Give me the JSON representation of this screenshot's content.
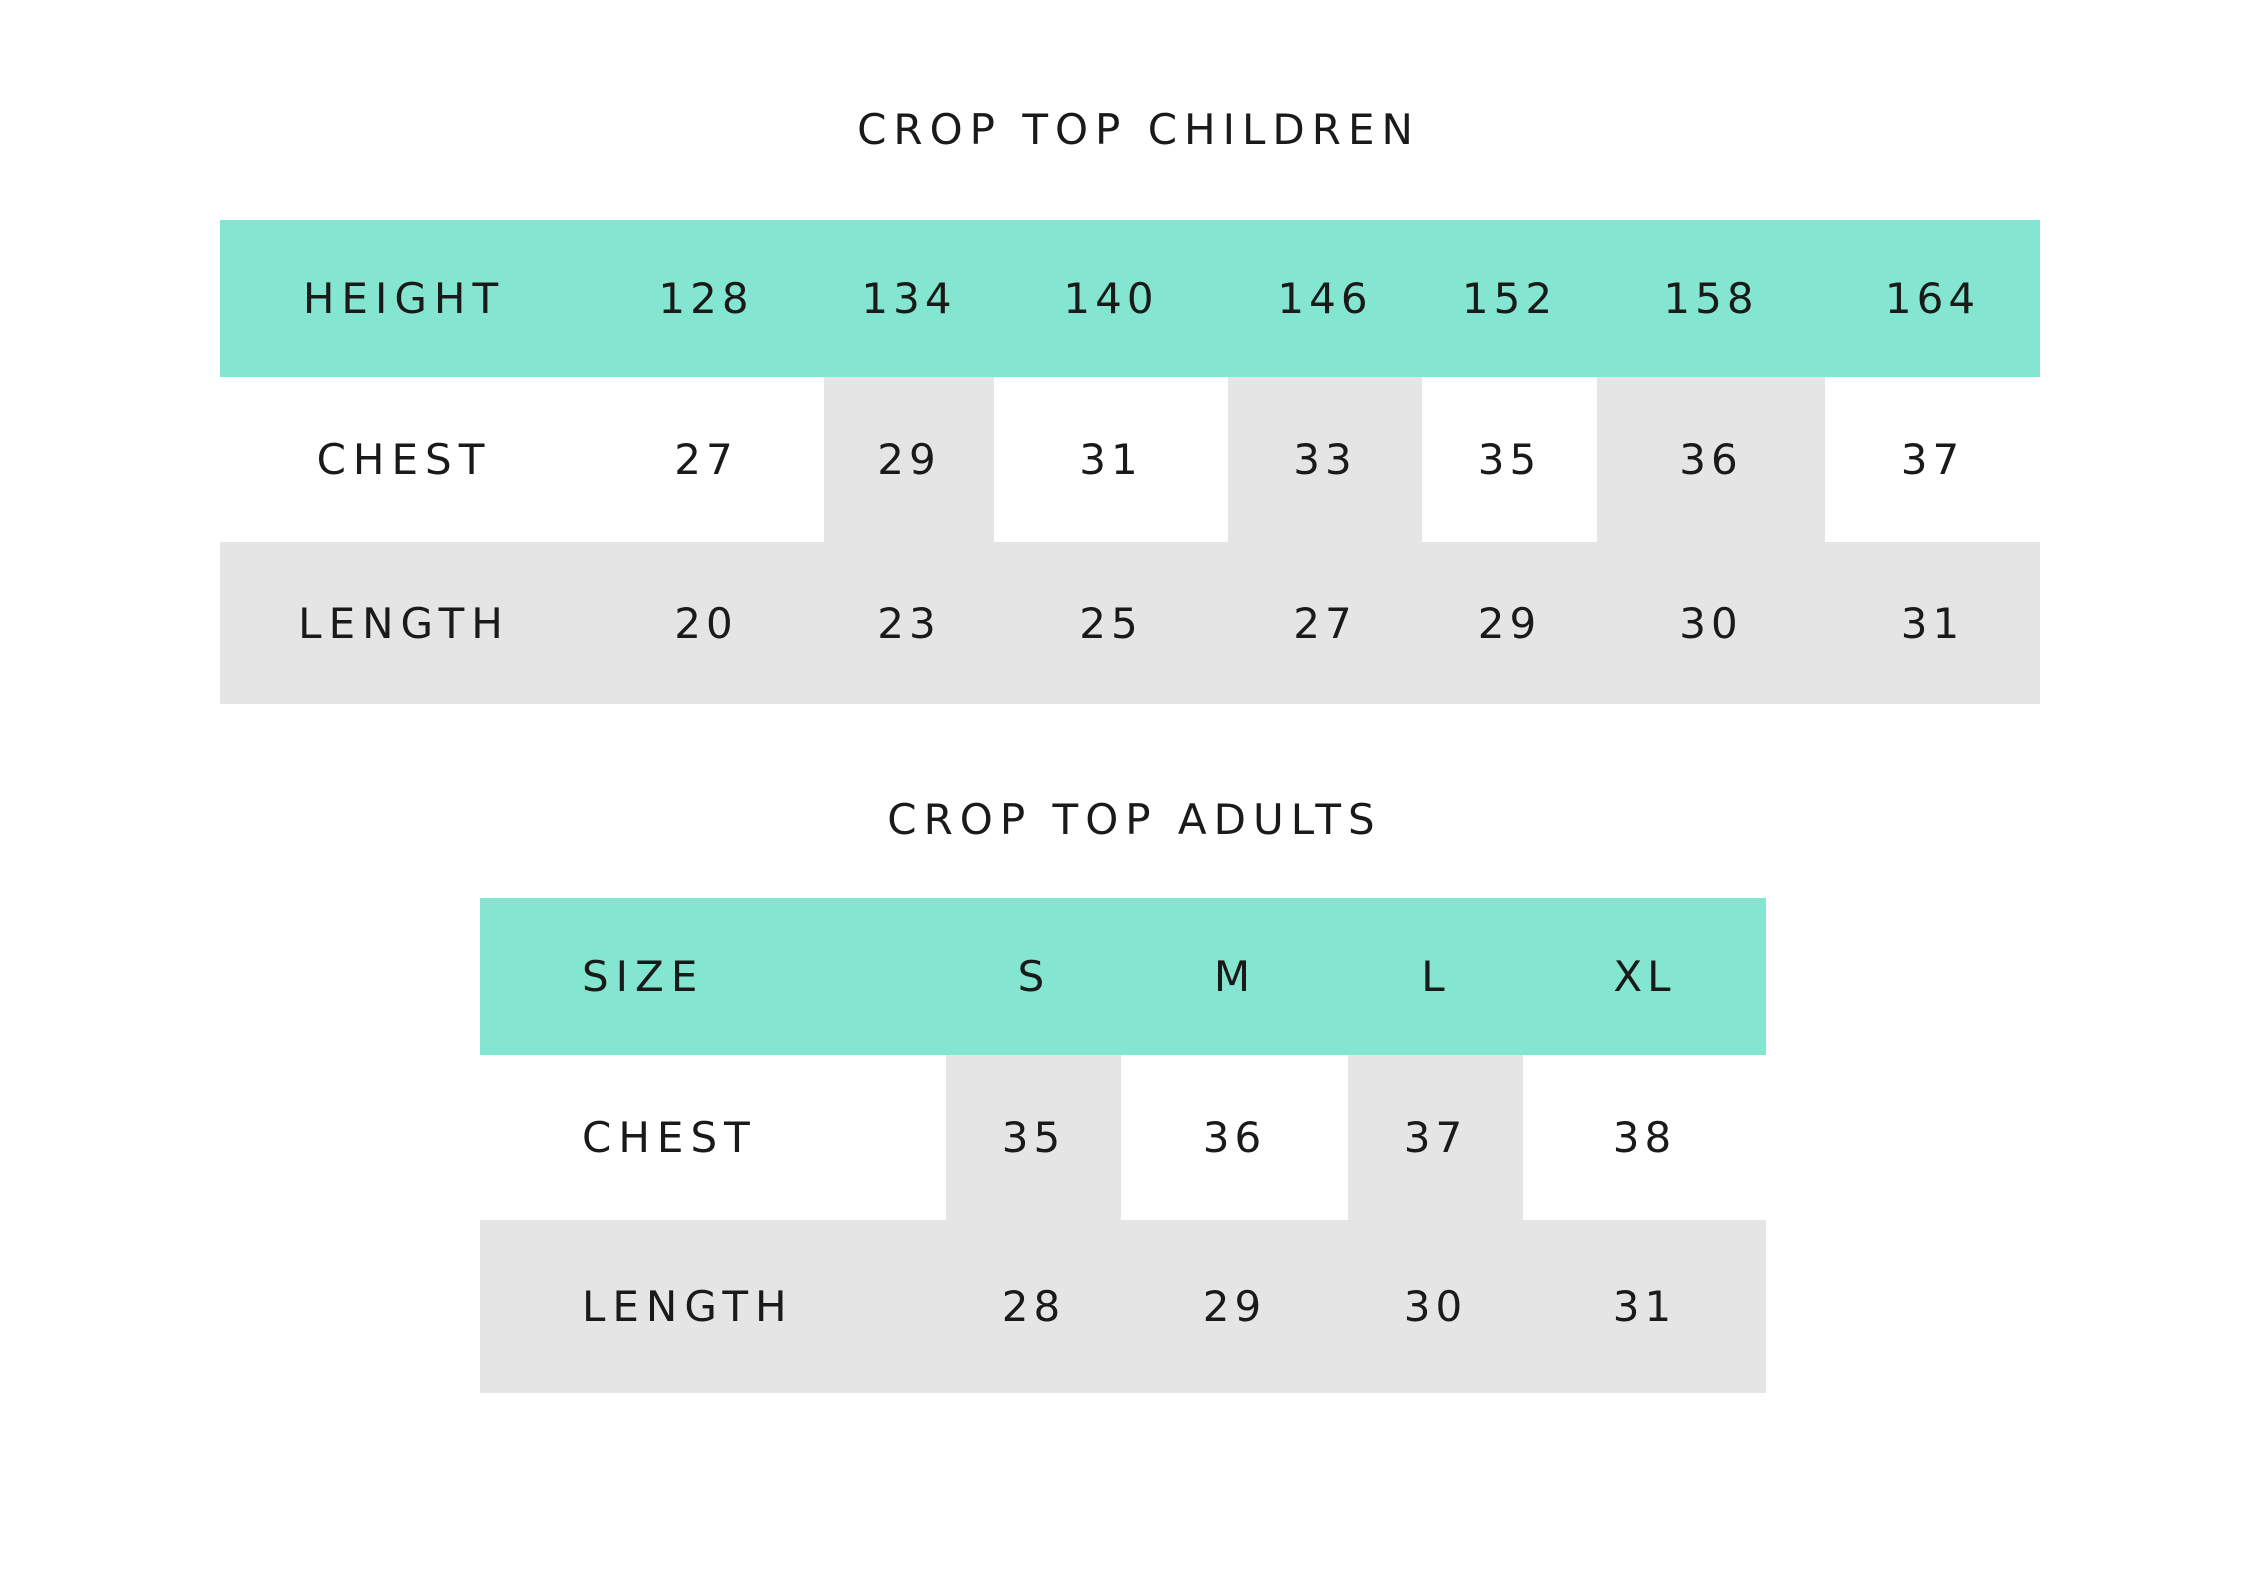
{
  "children": {
    "title": "CROP TOP CHILDREN",
    "header": {
      "label": "HEIGHT",
      "values": [
        "128",
        "134",
        "140",
        "146",
        "152",
        "158",
        "164"
      ]
    },
    "chest": {
      "label": "CHEST",
      "values": [
        "27",
        "29",
        "31",
        "33",
        "35",
        "36",
        "37"
      ]
    },
    "length": {
      "label": "LENGTH",
      "values": [
        "20",
        "23",
        "25",
        "27",
        "29",
        "30",
        "31"
      ]
    }
  },
  "adults": {
    "title": "CROP TOP ADULTS",
    "header": {
      "label": "SIZE",
      "values": [
        "S",
        "M",
        "L",
        "XL"
      ]
    },
    "chest": {
      "label": "CHEST",
      "values": [
        "35",
        "36",
        "37",
        "38"
      ]
    },
    "length": {
      "label": "LENGTH",
      "values": [
        "28",
        "29",
        "30",
        "31"
      ]
    }
  },
  "colors": {
    "header_bg": "#84e6d0",
    "shade_bg": "#e4e5e4",
    "text": "#1a1a1a"
  }
}
